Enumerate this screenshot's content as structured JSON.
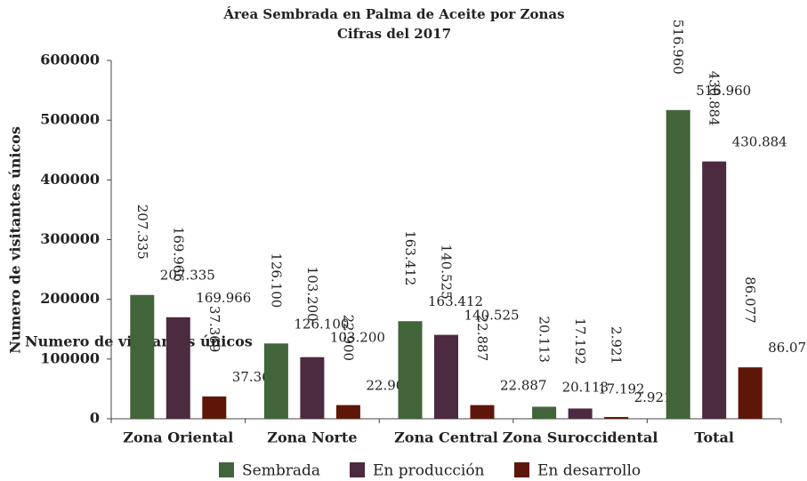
{
  "chart_data": {
    "type": "bar",
    "title": "Área Sembrada en Palma de Aceite por Zonas",
    "subtitle": "Cifras del 2017",
    "y_label": "Numero de visitantes únicos",
    "annotation": "Numero de visitantes únicos",
    "categories": [
      "Zona Oriental",
      "Zona Norte",
      "Zona Central",
      "Zona Suroccidental",
      "Total"
    ],
    "series": [
      {
        "name": "Sembrada",
        "color": "#42643a",
        "values": [
          207335,
          126100,
          163412,
          20113,
          516960
        ],
        "value_labels": [
          "207.335",
          "126.100",
          "163.412",
          "20.113",
          "516.960"
        ]
      },
      {
        "name": "En producción",
        "color": "#4c2a3f",
        "values": [
          169966,
          103200,
          140525,
          17192,
          430884
        ],
        "value_labels": [
          "169.966",
          "103.200",
          "140.525",
          "17.192",
          "430.884"
        ]
      },
      {
        "name": "En desarrollo",
        "color": "#5e1609",
        "values": [
          37369,
          22900,
          22887,
          2921,
          86077
        ],
        "value_labels": [
          "37.369",
          "22.900",
          "22.887",
          "2.921",
          "86.077"
        ]
      }
    ],
    "ylim": [
      0,
      600000
    ],
    "yticks": [
      0,
      100000,
      200000,
      300000,
      400000,
      500000,
      600000
    ],
    "grid": false,
    "legend": "bottom"
  }
}
